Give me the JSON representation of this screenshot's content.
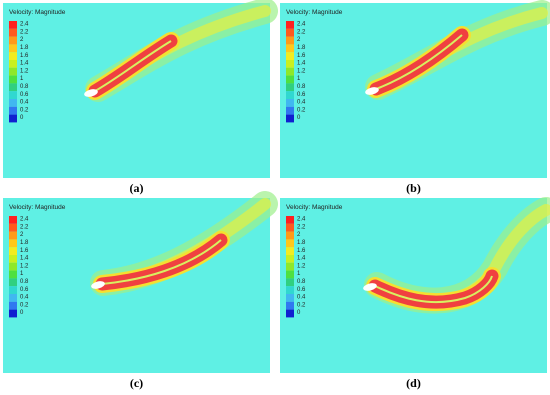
{
  "panels": [
    {
      "legend_title": "Velocity: Magnitude",
      "legend_ticks": [
        2.4,
        2.2,
        2,
        1.8,
        1.6,
        1.4,
        1.2,
        1,
        0.8,
        0.6,
        0.4,
        0.2,
        0
      ],
      "caption": "(a)"
    },
    {
      "legend_title": "Velocity: Magnitude",
      "legend_ticks": [
        2.4,
        2.2,
        2,
        1.8,
        1.6,
        1.4,
        1.2,
        1,
        0.8,
        0.6,
        0.4,
        0.2,
        0
      ],
      "caption": "(b)"
    },
    {
      "legend_title": "Velocity: Magnitude",
      "legend_ticks": [
        2.4,
        2.2,
        2,
        1.8,
        1.6,
        1.4,
        1.2,
        1,
        0.8,
        0.6,
        0.4,
        0.2,
        0
      ],
      "caption": "(c)"
    },
    {
      "legend_title": "Velocity: Magnitude",
      "legend_ticks": [
        2.4,
        2.2,
        2,
        1.8,
        1.6,
        1.4,
        1.2,
        1,
        0.8,
        0.6,
        0.4,
        0.2,
        0
      ],
      "caption": "(d)"
    }
  ]
}
